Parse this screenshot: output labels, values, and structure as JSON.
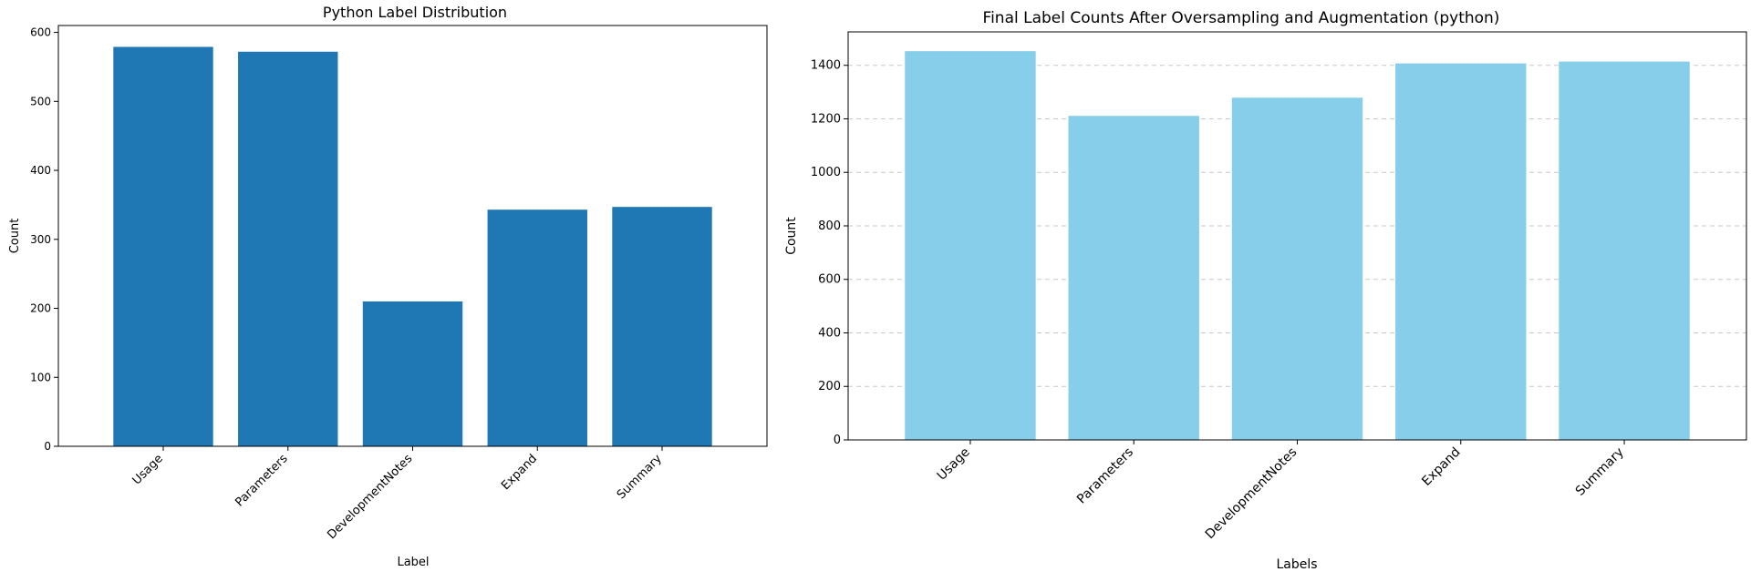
{
  "chart_data": [
    {
      "type": "bar",
      "title": "Python Label Distribution",
      "xlabel": "Label",
      "ylabel": "Count",
      "categories": [
        "Usage",
        "Parameters",
        "DevelopmentNotes",
        "Expand",
        "Summary"
      ],
      "values": [
        579,
        572,
        210,
        343,
        347
      ],
      "ylim": [
        0,
        610
      ],
      "yticks": [
        0,
        100,
        200,
        300,
        400,
        500,
        600
      ],
      "color": "#1f77b4",
      "grid": false
    },
    {
      "type": "bar",
      "title": "Final Label Counts After Oversampling and Augmentation (python)",
      "xlabel": "Labels",
      "ylabel": "Count",
      "categories": [
        "Usage",
        "Parameters",
        "DevelopmentNotes",
        "Expand",
        "Summary"
      ],
      "values": [
        1453,
        1211,
        1279,
        1407,
        1414
      ],
      "ylim": [
        0,
        1525
      ],
      "yticks": [
        0,
        200,
        400,
        600,
        800,
        1000,
        1200,
        1400
      ],
      "color": "#87ceeb",
      "grid": "y-dashed"
    }
  ]
}
